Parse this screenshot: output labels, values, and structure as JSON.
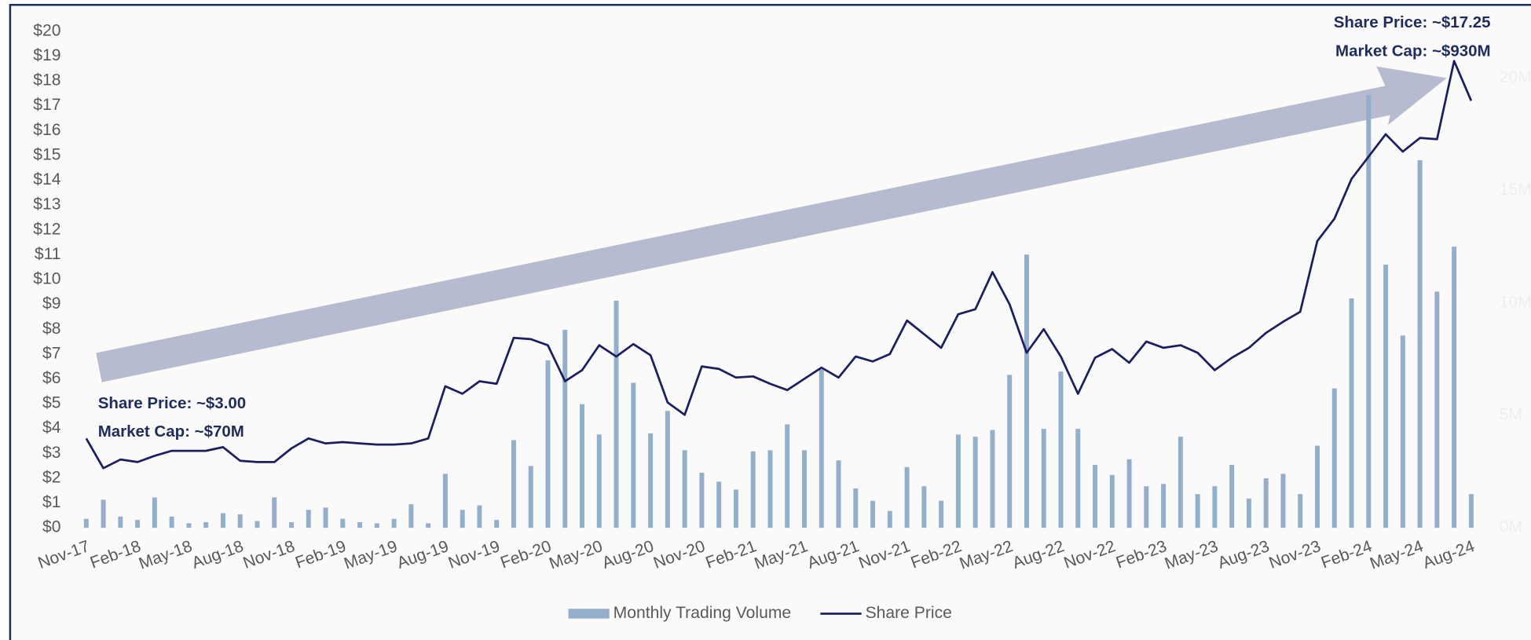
{
  "chart_data": {
    "type": "bar-line",
    "categories": [
      "Nov-17",
      null,
      null,
      "Feb-18",
      null,
      null,
      "May-18",
      null,
      null,
      "Aug-18",
      null,
      null,
      "Nov-18",
      null,
      null,
      "Feb-19",
      null,
      null,
      "May-19",
      null,
      null,
      "Aug-19",
      null,
      null,
      "Nov-19",
      null,
      null,
      "Feb-20",
      null,
      null,
      "May-20",
      null,
      null,
      "Aug-20",
      null,
      null,
      "Nov-20",
      null,
      null,
      "Feb-21",
      null,
      null,
      "May-21",
      null,
      null,
      "Aug-21",
      null,
      null,
      "Nov-21",
      null,
      null,
      "Feb-22",
      null,
      null,
      "May-22",
      null,
      null,
      "Aug-22",
      null,
      null,
      "Nov-22",
      null,
      null,
      "Feb-23",
      null,
      null,
      "May-23",
      null,
      null,
      "Aug-23",
      null,
      null,
      "Nov-23",
      null,
      null,
      "Feb-24",
      null,
      null,
      "May-24",
      null,
      null,
      "Aug-24"
    ],
    "series": [
      {
        "name": "Monthly Trading Volume",
        "type": "bar",
        "axis": "y2",
        "color": "#94aecb",
        "values": [
          0.4,
          1.25,
          0.5,
          0.35,
          1.35,
          0.5,
          0.2,
          0.25,
          0.65,
          0.6,
          0.3,
          1.35,
          0.25,
          0.8,
          0.9,
          0.4,
          0.25,
          0.2,
          0.4,
          1.05,
          0.2,
          2.4,
          0.8,
          1.0,
          0.35,
          3.9,
          2.75,
          7.45,
          8.8,
          5.5,
          4.15,
          10.1,
          6.45,
          4.2,
          5.2,
          3.45,
          2.45,
          2.05,
          1.7,
          3.4,
          3.45,
          4.6,
          3.45,
          7.05,
          3.0,
          1.75,
          1.2,
          0.75,
          2.7,
          1.85,
          1.2,
          4.15,
          4.05,
          4.35,
          6.8,
          12.15,
          4.4,
          6.95,
          4.4,
          2.8,
          2.35,
          3.05,
          1.85,
          1.95,
          4.05,
          1.5,
          1.85,
          2.8,
          1.3,
          2.2,
          2.4,
          1.5,
          3.65,
          6.2,
          10.2,
          19.25,
          11.7,
          8.55,
          16.35,
          10.5,
          12.5,
          1.5
        ]
      },
      {
        "name": "Share Price",
        "type": "line",
        "color": "#1c1f5e",
        "values": [
          3.6,
          2.4,
          2.75,
          2.65,
          2.9,
          3.1,
          3.1,
          3.1,
          3.25,
          2.7,
          2.65,
          2.65,
          3.2,
          3.6,
          3.4,
          3.45,
          3.4,
          3.35,
          3.35,
          3.4,
          3.6,
          5.7,
          5.4,
          5.9,
          5.8,
          7.65,
          7.6,
          7.35,
          5.9,
          6.35,
          7.35,
          6.9,
          7.4,
          6.95,
          5.05,
          4.55,
          6.5,
          6.4,
          6.05,
          6.1,
          5.8,
          5.55,
          6.0,
          6.45,
          6.05,
          6.9,
          6.7,
          7.0,
          8.35,
          7.8,
          7.25,
          8.6,
          8.8,
          10.3,
          9.0,
          7.05,
          8.0,
          6.9,
          5.4,
          6.85,
          7.2,
          6.65,
          7.5,
          7.25,
          7.35,
          7.05,
          6.35,
          6.85,
          7.25,
          7.85,
          8.3,
          8.7,
          11.55,
          12.45,
          14.05,
          14.95,
          15.85,
          15.15,
          15.7,
          15.65,
          18.8,
          17.2
        ]
      }
    ],
    "ylim": [
      0,
      20
    ],
    "yticks": [
      {
        "value": 0,
        "label": "$0"
      },
      {
        "value": 1,
        "label": "$1"
      },
      {
        "value": 2,
        "label": "$2"
      },
      {
        "value": 3,
        "label": "$3"
      },
      {
        "value": 4,
        "label": "$4"
      },
      {
        "value": 5,
        "label": "$5"
      },
      {
        "value": 6,
        "label": "$6"
      },
      {
        "value": 7,
        "label": "$7"
      },
      {
        "value": 8,
        "label": "$8"
      },
      {
        "value": 9,
        "label": "$9"
      },
      {
        "value": 10,
        "label": "$10"
      },
      {
        "value": 11,
        "label": "$11"
      },
      {
        "value": 12,
        "label": "$12"
      },
      {
        "value": 13,
        "label": "$13"
      },
      {
        "value": 14,
        "label": "$14"
      },
      {
        "value": 15,
        "label": "$15"
      },
      {
        "value": 16,
        "label": "$16"
      },
      {
        "value": 17,
        "label": "$17"
      },
      {
        "value": 18,
        "label": "$18"
      },
      {
        "value": 19,
        "label": "$19"
      },
      {
        "value": 20,
        "label": "$20"
      }
    ],
    "y2lim": [
      0,
      20
    ],
    "y2ticks": [
      {
        "value": 0,
        "label": "0M"
      },
      {
        "value": 5,
        "label": "5M"
      },
      {
        "value": 10,
        "label": "10M"
      },
      {
        "value": 15,
        "label": "15M"
      },
      {
        "value": 20,
        "label": "20M"
      }
    ],
    "annotations": [
      "Share Price: ~$3.00",
      "Market Cap: ~$70M",
      "Share Price: ~$17.25",
      "Market Cap: ~$930M"
    ],
    "legend": "bottom"
  }
}
